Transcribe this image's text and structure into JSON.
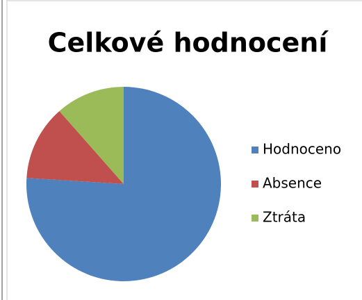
{
  "chart_data": {
    "type": "pie",
    "title": "Celkové hodnocení",
    "categories": [
      "Hodnoceno",
      "Absence",
      "Ztráta"
    ],
    "values": [
      76,
      12.5,
      11.5
    ],
    "colors": [
      "#4f81bd",
      "#c0504d",
      "#9bbb59"
    ],
    "legend": "right"
  }
}
